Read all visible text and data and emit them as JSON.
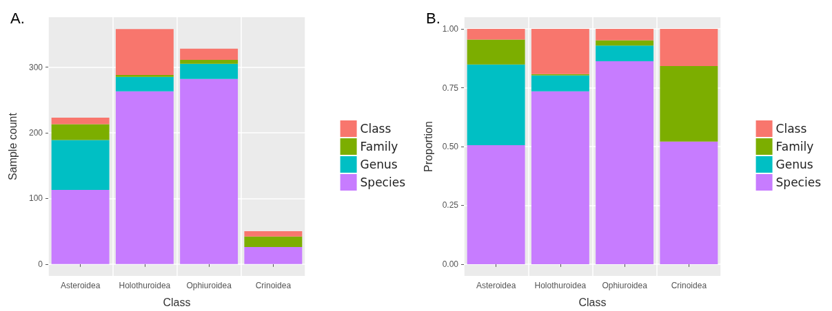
{
  "chart_data": [
    {
      "type": "bar",
      "title": "A.",
      "xlabel": "Class",
      "ylabel": "Sample count",
      "categories": [
        "Asteroidea",
        "Holothuroidea",
        "Ophiuroidea",
        "Crinoidea"
      ],
      "stacked": true,
      "ylim": [
        -18,
        376
      ],
      "yticks": [
        0,
        100,
        200,
        300
      ],
      "grid": true,
      "legend": "right",
      "series": [
        {
          "name": "Species",
          "color": "#c77cff",
          "values": [
            113,
            263,
            282,
            26
          ]
        },
        {
          "name": "Genus",
          "color": "#00bfc4",
          "values": [
            76,
            22,
            23,
            0
          ]
        },
        {
          "name": "Family",
          "color": "#7cae00",
          "values": [
            24,
            3,
            6,
            16
          ]
        },
        {
          "name": "Class",
          "color": "#f8766d",
          "values": [
            10,
            70,
            17,
            8
          ]
        }
      ]
    },
    {
      "type": "bar",
      "title": "B.",
      "xlabel": "Class",
      "ylabel": "Proportion",
      "categories": [
        "Asteroidea",
        "Holothuroidea",
        "Ophiuroidea",
        "Crinoidea"
      ],
      "stacked": true,
      "ylim": [
        -0.05,
        1.05
      ],
      "yticks": [
        {
          "value": 0,
          "label": "0.00"
        },
        {
          "value": 0.25,
          "label": "0.25"
        },
        {
          "value": 0.5,
          "label": "0.50"
        },
        {
          "value": 0.75,
          "label": "0.75"
        },
        {
          "value": 1,
          "label": "1.00"
        }
      ],
      "grid": true,
      "legend": "right",
      "series": [
        {
          "name": "Species",
          "color": "#c77cff",
          "values": [
            0.506,
            0.735,
            0.863,
            0.521
          ]
        },
        {
          "name": "Genus",
          "color": "#00bfc4",
          "values": [
            0.343,
            0.068,
            0.066,
            0
          ]
        },
        {
          "name": "Family",
          "color": "#7cae00",
          "values": [
            0.106,
            0.005,
            0.023,
            0.321
          ]
        },
        {
          "name": "Class",
          "color": "#f8766d",
          "values": [
            0.045,
            0.192,
            0.048,
            0.158
          ]
        }
      ]
    }
  ]
}
